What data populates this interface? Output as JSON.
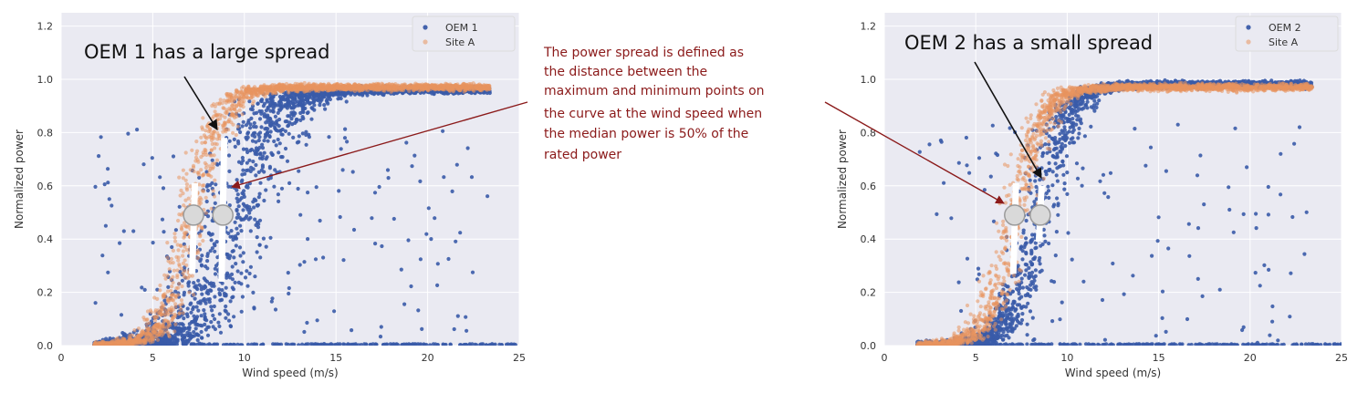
{
  "colors": {
    "oem": "#3a5ba8",
    "site": "#e8935e",
    "plot_bg": "#eaeaf2",
    "grid": "#ffffff",
    "note_text": "#8b1a1a",
    "note_arrow": "#8b1a1a"
  },
  "annotation": {
    "lines": [
      "The power spread is defined as",
      "the distance between the",
      "maximum and minimum points on",
      "the curve at the wind speed when",
      "the median power is 50% of the",
      "rated power"
    ]
  },
  "chart_data": [
    {
      "type": "scatter",
      "title": "",
      "xlabel": "Wind speed (m/s)",
      "ylabel": "Normalized power",
      "xlim": [
        0,
        25
      ],
      "ylim": [
        0,
        1.25
      ],
      "xticks": [
        "0",
        "5",
        "10",
        "15",
        "20",
        "25"
      ],
      "yticks": [
        "0.0",
        "0.2",
        "0.4",
        "0.6",
        "0.8",
        "1.0",
        "1.2"
      ],
      "grid": true,
      "legend_position": "top-right",
      "series": [
        {
          "name": "OEM 1",
          "marker": "point",
          "curve_center_ws": 9.3,
          "curve_steepness": 0.55,
          "rated_power": 0.96,
          "spread": "large"
        },
        {
          "name": "Site A",
          "marker": "point",
          "curve_center_ws": 7.2,
          "curve_steepness": 0.8,
          "rated_power": 0.97
        }
      ],
      "callout": "OEM 1 has a large spread",
      "spread_markers": [
        {
          "ws": 7.3,
          "p50": 0.49,
          "min": 0.27,
          "max": 0.61
        },
        {
          "ws": 8.9,
          "p50": 0.49,
          "min": 0.24,
          "max": 0.78
        }
      ]
    },
    {
      "type": "scatter",
      "title": "",
      "xlabel": "Wind speed (m/s)",
      "ylabel": "Normalized power",
      "xlim": [
        0,
        25
      ],
      "ylim": [
        0,
        1.25
      ],
      "xticks": [
        "0",
        "5",
        "10",
        "15",
        "20",
        "25"
      ],
      "yticks": [
        "0.0",
        "0.2",
        "0.4",
        "0.6",
        "0.8",
        "1.0",
        "1.2"
      ],
      "grid": true,
      "legend_position": "top-right",
      "series": [
        {
          "name": "OEM 2",
          "marker": "point",
          "curve_center_ws": 8.4,
          "curve_steepness": 0.75,
          "rated_power": 0.98,
          "spread": "small"
        },
        {
          "name": "Site A",
          "marker": "point",
          "curve_center_ws": 7.2,
          "curve_steepness": 0.8,
          "rated_power": 0.97
        }
      ],
      "callout": "OEM 2 has a small spread",
      "spread_markers": [
        {
          "ws": 7.2,
          "p50": 0.49,
          "min": 0.27,
          "max": 0.61
        },
        {
          "ws": 8.6,
          "p50": 0.49,
          "min": 0.39,
          "max": 0.6
        }
      ]
    }
  ]
}
